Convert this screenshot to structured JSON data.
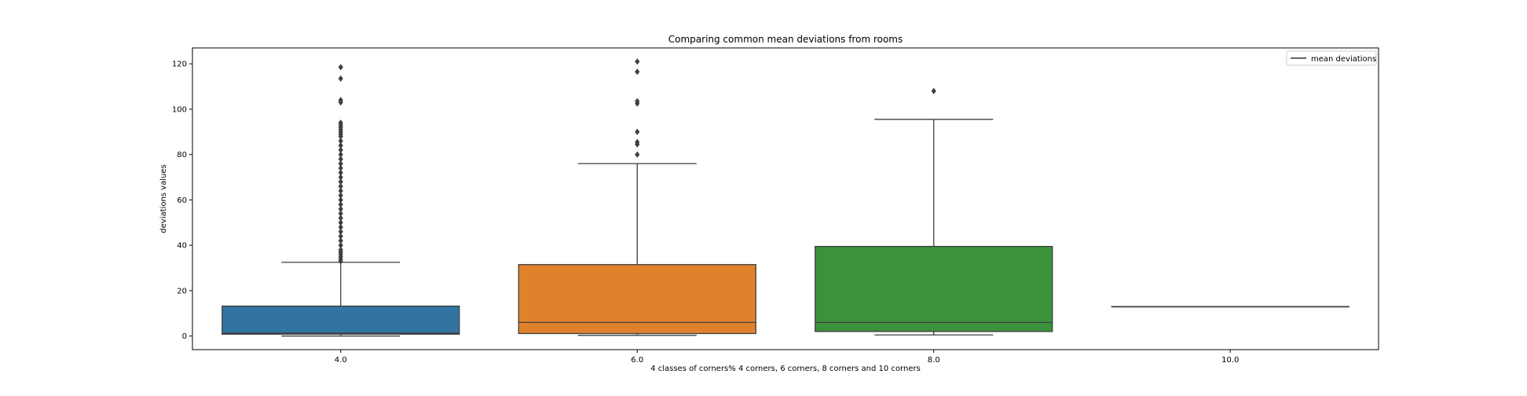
{
  "chart_data": {
    "type": "box",
    "title": "Comparing common mean deviations from rooms",
    "xlabel": "4 classes of corners% 4 corners, 6 corners, 8 corners and 10 corners",
    "ylabel": "deviations values",
    "categories": [
      "4.0",
      "6.0",
      "8.0",
      "10.0"
    ],
    "ylim": [
      -6,
      127
    ],
    "yticks": [
      0,
      20,
      40,
      60,
      80,
      100,
      120
    ],
    "ytick_labels": [
      "0",
      "20",
      "40",
      "60",
      "80",
      "100",
      "120"
    ],
    "grid": false,
    "legend": {
      "position": "top-right",
      "entries": [
        "mean deviations"
      ]
    },
    "boxes": [
      {
        "category": "4.0",
        "color": "#3274a1",
        "whisker_low": 0,
        "q1": 0.8,
        "median": 1.3,
        "q3": 13.2,
        "whisker_high": 32.5,
        "outliers": [
          33,
          34,
          35,
          36,
          37,
          38,
          40,
          42,
          44,
          46,
          48,
          50,
          52,
          54,
          56,
          58,
          60,
          62,
          64,
          66,
          68,
          70,
          72,
          74,
          76,
          78,
          80,
          82,
          84,
          86,
          88,
          89,
          90,
          91,
          92,
          93,
          94,
          103,
          104,
          113.5,
          118.5
        ]
      },
      {
        "category": "6.0",
        "color": "#e1812c",
        "whisker_low": 0.3,
        "q1": 1.1,
        "median": 6,
        "q3": 31.5,
        "whisker_high": 76,
        "outliers": [
          80,
          84.5,
          85.5,
          90,
          102.5,
          103.5,
          116.5,
          121
        ]
      },
      {
        "category": "8.0",
        "color": "#3a923a",
        "whisker_low": 0.5,
        "q1": 2,
        "median": 6,
        "q3": 39.5,
        "whisker_high": 95.5,
        "outliers": [
          108
        ]
      },
      {
        "category": "10.0",
        "color": "#c03d3e",
        "whisker_low": 13,
        "q1": 13,
        "median": 13,
        "q3": 13,
        "whisker_high": 13,
        "outliers": []
      }
    ]
  }
}
